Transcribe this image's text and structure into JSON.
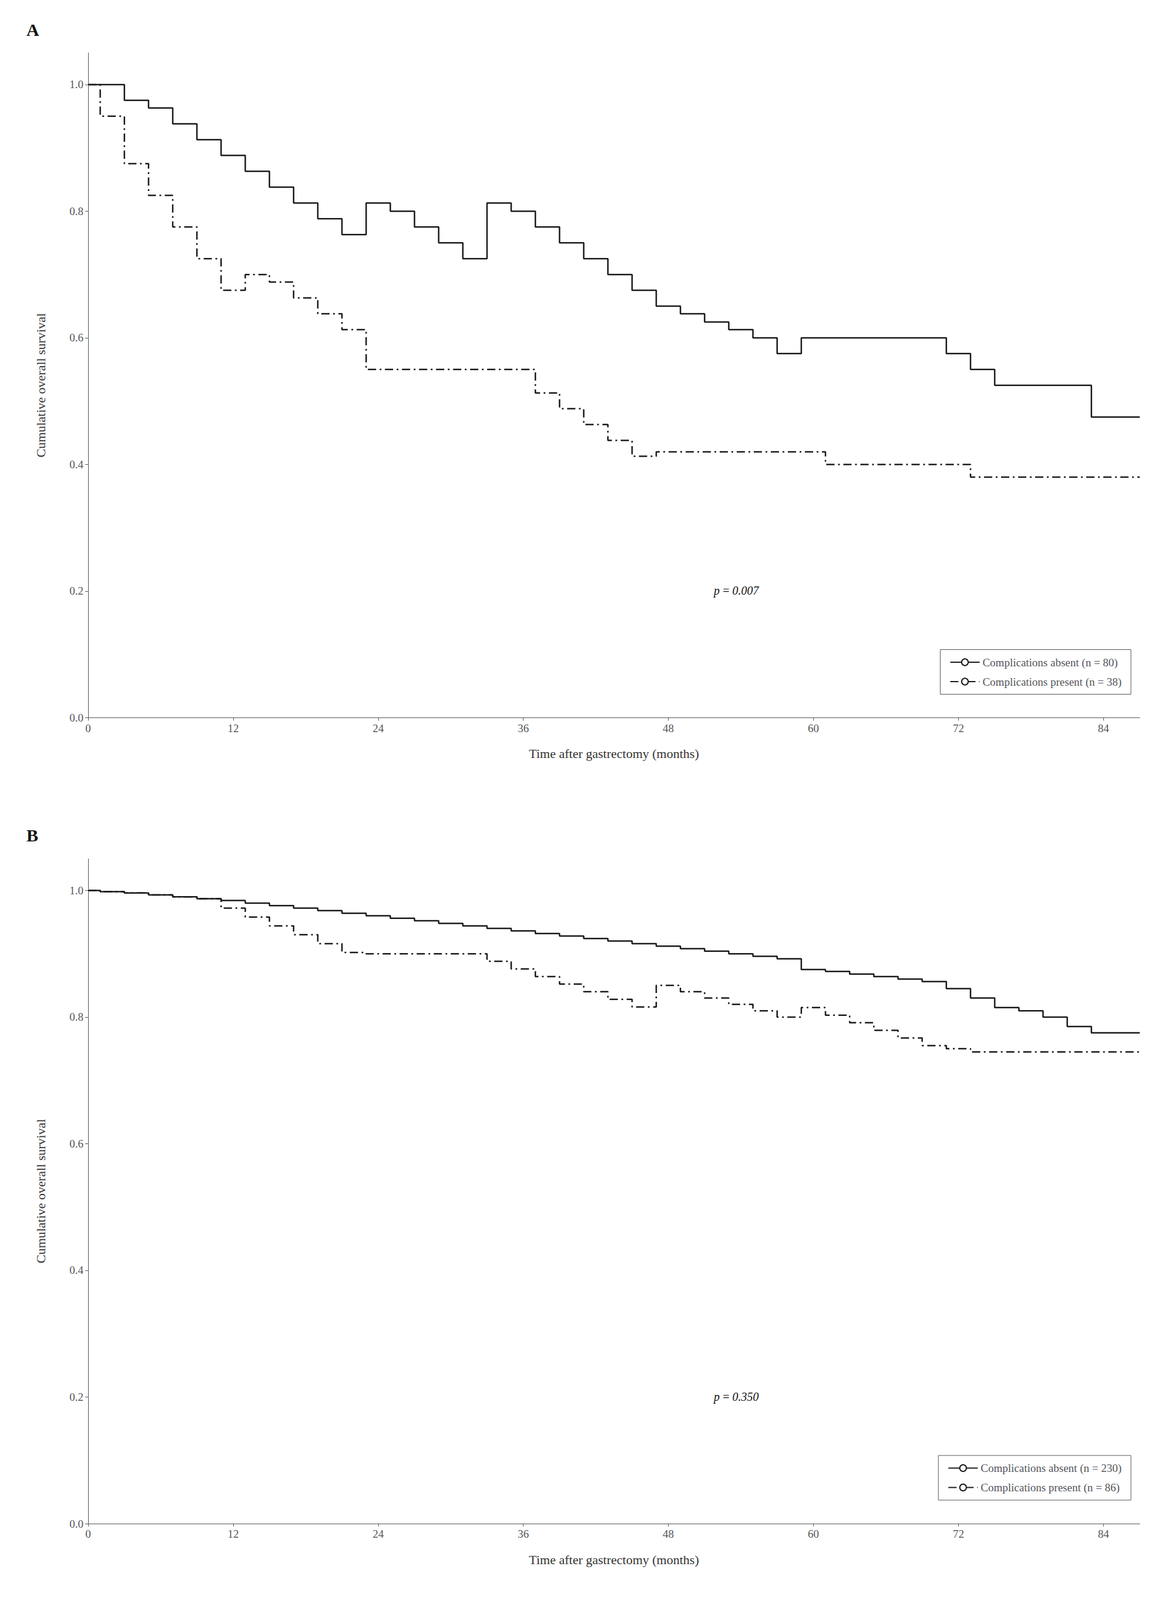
{
  "chart_data": [
    {
      "type": "line",
      "title": "A",
      "x": [
        0,
        1,
        3,
        5,
        7,
        9,
        11,
        13,
        15,
        17,
        19,
        21,
        23,
        25,
        27,
        29,
        31,
        33,
        35,
        37,
        39,
        41,
        43,
        45,
        47,
        49,
        51,
        53,
        55,
        57,
        59,
        61,
        63,
        65,
        67,
        69,
        71,
        73,
        75,
        77,
        79,
        81,
        83,
        85,
        87
      ],
      "series": [
        {
          "name": "Complications absent (n = 80)",
          "color": "#1a1a1a",
          "line_style": "solid",
          "values": [
            1.0,
            1.0,
            0.975,
            0.963,
            0.938,
            0.913,
            0.888,
            0.863,
            0.838,
            0.813,
            0.788,
            0.763,
            0.813,
            0.8,
            0.775,
            0.75,
            0.725,
            0.813,
            0.8,
            0.775,
            0.75,
            0.725,
            0.7,
            0.675,
            0.65,
            0.638,
            0.625,
            0.613,
            0.6,
            0.575,
            0.6,
            0.6,
            0.6,
            0.6,
            0.6,
            0.6,
            0.575,
            0.55,
            0.525,
            0.525,
            0.525,
            0.525,
            0.475,
            0.475,
            0.475
          ]
        },
        {
          "name": "Complications present (n = 38)",
          "color": "#1a1a1a",
          "line_style": "dashdot",
          "values": [
            1.0,
            0.95,
            0.875,
            0.825,
            0.775,
            0.725,
            0.675,
            0.7,
            0.688,
            0.663,
            0.638,
            0.613,
            0.55,
            0.55,
            0.55,
            0.55,
            0.55,
            0.55,
            0.55,
            0.513,
            0.488,
            0.463,
            0.438,
            0.413,
            0.42,
            0.42,
            0.42,
            0.42,
            0.42,
            0.42,
            0.42,
            0.4,
            0.4,
            0.4,
            0.4,
            0.4,
            0.4,
            0.38,
            0.38,
            0.38,
            0.38,
            0.38,
            0.38,
            0.38,
            0.38
          ]
        }
      ],
      "annotation": "p = 0.007",
      "xlabel": "Time after gastrectomy (months)",
      "ylabel": "Cumulative overall survival",
      "xlim": [
        0,
        87
      ],
      "xticks": [
        0,
        12,
        24,
        36,
        48,
        60,
        72,
        84
      ],
      "ylim": [
        0.0,
        1.05
      ],
      "yticks": [
        {
          "value": 0.0,
          "label": "0.0"
        },
        0.2,
        0.4,
        0.6,
        0.8,
        {
          "value": 1.0,
          "label": "1.0"
        }
      ],
      "grid": false,
      "legend": "lower right"
    },
    {
      "type": "line",
      "title": "B",
      "x": [
        0,
        1,
        3,
        5,
        7,
        9,
        11,
        13,
        15,
        17,
        19,
        21,
        23,
        25,
        27,
        29,
        31,
        33,
        35,
        37,
        39,
        41,
        43,
        45,
        47,
        49,
        51,
        53,
        55,
        57,
        59,
        61,
        63,
        65,
        67,
        69,
        71,
        73,
        75,
        77,
        79,
        81,
        83,
        85,
        87
      ],
      "series": [
        {
          "name": "Complications absent (n = 230)",
          "color": "#1a1a1a",
          "line_style": "solid",
          "values": [
            1.0,
            0.998,
            0.996,
            0.993,
            0.99,
            0.987,
            0.984,
            0.98,
            0.976,
            0.972,
            0.968,
            0.964,
            0.96,
            0.956,
            0.952,
            0.948,
            0.944,
            0.94,
            0.936,
            0.932,
            0.928,
            0.924,
            0.92,
            0.916,
            0.912,
            0.908,
            0.904,
            0.9,
            0.896,
            0.892,
            0.875,
            0.872,
            0.868,
            0.864,
            0.86,
            0.856,
            0.845,
            0.83,
            0.815,
            0.81,
            0.8,
            0.785,
            0.775,
            0.775,
            0.775
          ]
        },
        {
          "name": "Complications present (n = 86)",
          "color": "#1a1a1a",
          "line_style": "dashdot",
          "values": [
            1.0,
            0.998,
            0.996,
            0.993,
            0.99,
            0.987,
            0.972,
            0.958,
            0.944,
            0.93,
            0.916,
            0.902,
            0.9,
            0.9,
            0.9,
            0.9,
            0.9,
            0.888,
            0.876,
            0.864,
            0.852,
            0.84,
            0.828,
            0.816,
            0.85,
            0.84,
            0.83,
            0.82,
            0.81,
            0.8,
            0.815,
            0.803,
            0.791,
            0.779,
            0.767,
            0.755,
            0.75,
            0.745,
            0.745,
            0.745,
            0.745,
            0.745,
            0.745,
            0.745,
            0.745
          ]
        }
      ],
      "annotation": "p = 0.350",
      "xlabel": "Time after gastrectomy (months)",
      "ylabel": "Cumulative overall survival",
      "xlim": [
        0,
        87
      ],
      "xticks": [
        0,
        12,
        24,
        36,
        48,
        60,
        72,
        84
      ],
      "ylim": [
        0.0,
        1.05
      ],
      "yticks": [
        {
          "value": 0.0,
          "label": "0.0"
        },
        0.2,
        0.4,
        0.6,
        0.8,
        {
          "value": 1.0,
          "label": "1.0"
        }
      ],
      "grid": false,
      "legend": "lower right"
    }
  ]
}
